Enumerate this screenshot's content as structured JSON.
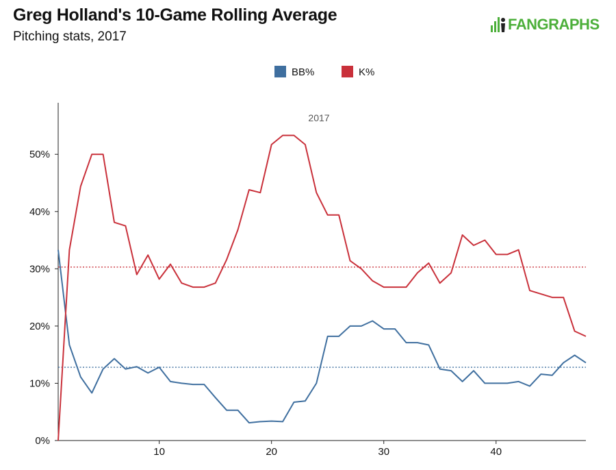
{
  "header": {
    "title": "Greg Holland's 10-Game Rolling Average",
    "subtitle": "Pitching stats, 2017",
    "logo_text": "FANGRAPHS"
  },
  "chart_data": {
    "type": "line",
    "annotation": "2017",
    "xlim": [
      1,
      48
    ],
    "ylim": [
      0,
      0.59
    ],
    "x_ticks": [
      10,
      20,
      30,
      40
    ],
    "y_ticks": [
      0,
      0.1,
      0.2,
      0.3,
      0.4,
      0.5
    ],
    "y_tick_labels": [
      "0%",
      "10%",
      "20%",
      "30%",
      "40%",
      "50%"
    ],
    "legend_position": "top-center",
    "series": [
      {
        "name": "BB%",
        "color": "#3f6f9f",
        "average": 0.128,
        "x": [
          1,
          2,
          3,
          4,
          5,
          6,
          7,
          8,
          9,
          10,
          11,
          12,
          13,
          14,
          15,
          16,
          17,
          18,
          19,
          20,
          21,
          22,
          23,
          24,
          25,
          26,
          27,
          28,
          29,
          30,
          31,
          32,
          33,
          34,
          35,
          36,
          37,
          38,
          39,
          40,
          41,
          42,
          43,
          44,
          45,
          46,
          47,
          48
        ],
        "values": [
          0.333,
          0.167,
          0.111,
          0.083,
          0.125,
          0.143,
          0.125,
          0.129,
          0.118,
          0.128,
          0.103,
          0.1,
          0.098,
          0.098,
          0.075,
          0.053,
          0.053,
          0.031,
          0.033,
          0.034,
          0.033,
          0.067,
          0.069,
          0.1,
          0.182,
          0.182,
          0.2,
          0.2,
          0.209,
          0.195,
          0.195,
          0.171,
          0.171,
          0.167,
          0.125,
          0.122,
          0.103,
          0.122,
          0.1,
          0.1,
          0.1,
          0.103,
          0.095,
          0.116,
          0.114,
          0.136,
          0.149,
          0.136
        ]
      },
      {
        "name": "K%",
        "color": "#c9303a",
        "average": 0.303,
        "x": [
          1,
          2,
          3,
          4,
          5,
          6,
          7,
          8,
          9,
          10,
          11,
          12,
          13,
          14,
          15,
          16,
          17,
          18,
          19,
          20,
          21,
          22,
          23,
          24,
          25,
          26,
          27,
          28,
          29,
          30,
          31,
          32,
          33,
          34,
          35,
          36,
          37,
          38,
          39,
          40,
          41,
          42,
          43,
          44,
          45,
          46,
          47,
          48
        ],
        "values": [
          0.0,
          0.333,
          0.444,
          0.5,
          0.5,
          0.381,
          0.375,
          0.29,
          0.324,
          0.282,
          0.308,
          0.275,
          0.268,
          0.268,
          0.275,
          0.316,
          0.368,
          0.438,
          0.433,
          0.517,
          0.533,
          0.533,
          0.517,
          0.433,
          0.394,
          0.394,
          0.314,
          0.3,
          0.279,
          0.268,
          0.268,
          0.268,
          0.293,
          0.31,
          0.275,
          0.293,
          0.359,
          0.341,
          0.35,
          0.325,
          0.325,
          0.333,
          0.262,
          0.256,
          0.25,
          0.25,
          0.191,
          0.182
        ]
      }
    ]
  }
}
